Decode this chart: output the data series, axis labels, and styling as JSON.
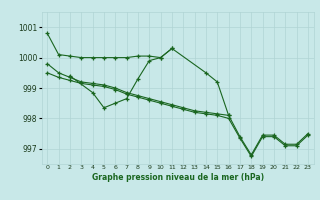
{
  "title": "Graphe pression niveau de la mer (hPa)",
  "bg_color": "#c8e8e8",
  "grid_color": "#b0d4d4",
  "line_color": "#1a6620",
  "xlim": [
    -0.5,
    23.5
  ],
  "ylim": [
    996.5,
    1001.5
  ],
  "yticks": [
    997,
    998,
    999,
    1000,
    1001
  ],
  "ytick_labels": [
    "997",
    "998",
    "999",
    "1000",
    "1001"
  ],
  "xtick_labels": [
    "0",
    "1",
    "2",
    "3",
    "4",
    "5",
    "6",
    "7",
    "8",
    "9",
    "10",
    "11",
    "12",
    "13",
    "14",
    "15",
    "16",
    "17",
    "18",
    "19",
    "20",
    "21",
    "22",
    "23"
  ],
  "s1_x": [
    0,
    1,
    2,
    3,
    4,
    5,
    6,
    7,
    8,
    9,
    10,
    11,
    14,
    15,
    16
  ],
  "s1_y": [
    1000.8,
    1000.1,
    1000.05,
    1000.0,
    1000.0,
    1000.0,
    1000.0,
    1000.0,
    1000.05,
    1000.05,
    1000.0,
    1000.3,
    999.5,
    999.2,
    998.1
  ],
  "s2_x": [
    2,
    4,
    5,
    6,
    7,
    8,
    9,
    10,
    11
  ],
  "s2_y": [
    999.4,
    998.85,
    998.35,
    998.5,
    998.65,
    999.3,
    999.9,
    1000.0,
    1000.3
  ],
  "s3_x": [
    0,
    1,
    2,
    3,
    4,
    5,
    6,
    7,
    8,
    9,
    10,
    11,
    12,
    13,
    14,
    15,
    16,
    17,
    18,
    19,
    20,
    21,
    22,
    23
  ],
  "s3_y": [
    999.8,
    999.5,
    999.35,
    999.2,
    999.15,
    999.1,
    999.0,
    998.85,
    998.75,
    998.65,
    998.55,
    998.45,
    998.35,
    998.25,
    998.2,
    998.15,
    998.1,
    997.4,
    996.8,
    997.45,
    997.45,
    997.15,
    997.15,
    997.5
  ],
  "s4_x": [
    0,
    1,
    2,
    3,
    4,
    5,
    6,
    7,
    8,
    9,
    10,
    11,
    12,
    13,
    14,
    15,
    16,
    17,
    18,
    19,
    20,
    21,
    22,
    23
  ],
  "s4_y": [
    999.5,
    999.35,
    999.25,
    999.15,
    999.1,
    999.05,
    998.95,
    998.8,
    998.7,
    998.6,
    998.5,
    998.4,
    998.3,
    998.2,
    998.15,
    998.1,
    998.0,
    997.35,
    996.75,
    997.4,
    997.4,
    997.1,
    997.1,
    997.45
  ]
}
